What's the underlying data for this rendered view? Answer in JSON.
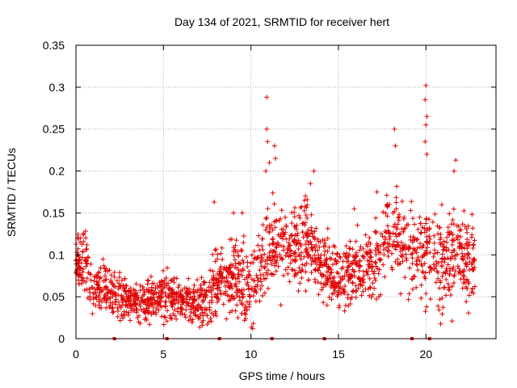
{
  "chart_data": {
    "type": "scatter",
    "title": "Day 134 of 2021, SRMTID for receiver hert",
    "xlabel": "GPS time / hours",
    "ylabel": "SRMTID / TECUs",
    "xlim": [
      0,
      24
    ],
    "ylim": [
      0,
      0.35
    ],
    "x_ticks": [
      0,
      5,
      10,
      15,
      20
    ],
    "y_ticks": [
      0,
      0.05,
      0.1,
      0.15,
      0.2,
      0.25,
      0.3,
      0.35
    ],
    "x_tick_labels": [
      "0",
      "5",
      "10",
      "15",
      "20"
    ],
    "y_tick_labels": [
      "0",
      "0.05",
      "0.1",
      "0.15",
      "0.2",
      "0.25",
      "0.3",
      "0.35"
    ],
    "grid": true,
    "marker": "+",
    "color": "#e00000",
    "baseline_markers_hours": [
      2.2,
      5.2,
      8.2,
      11.2,
      14.2,
      19.2,
      20.2
    ],
    "series": [
      {
        "name": "SRMTID",
        "profile_hours": [
          0,
          0.5,
          1,
          2,
          3,
          4,
          5,
          6,
          7,
          8,
          9,
          10,
          11,
          12,
          13,
          14,
          15,
          16,
          17,
          18,
          19,
          20,
          21,
          22,
          22.8
        ],
        "profile_median": [
          0.085,
          0.095,
          0.06,
          0.055,
          0.045,
          0.045,
          0.05,
          0.045,
          0.04,
          0.065,
          0.075,
          0.06,
          0.105,
          0.11,
          0.12,
          0.09,
          0.065,
          0.085,
          0.09,
          0.13,
          0.1,
          0.11,
          0.09,
          0.105,
          0.09
        ],
        "profile_spread": [
          0.02,
          0.025,
          0.02,
          0.02,
          0.015,
          0.015,
          0.018,
          0.015,
          0.017,
          0.03,
          0.03,
          0.03,
          0.035,
          0.03,
          0.035,
          0.025,
          0.025,
          0.025,
          0.03,
          0.03,
          0.035,
          0.04,
          0.035,
          0.035,
          0.03
        ],
        "outliers": [
          {
            "x": 10.9,
            "y": 0.288
          },
          {
            "x": 10.9,
            "y": 0.25
          },
          {
            "x": 10.95,
            "y": 0.235
          },
          {
            "x": 11.05,
            "y": 0.21
          },
          {
            "x": 10.85,
            "y": 0.2
          },
          {
            "x": 11.35,
            "y": 0.23
          },
          {
            "x": 11.4,
            "y": 0.215
          },
          {
            "x": 13.6,
            "y": 0.2
          },
          {
            "x": 13.4,
            "y": 0.185
          },
          {
            "x": 18.2,
            "y": 0.25
          },
          {
            "x": 18.25,
            "y": 0.23
          },
          {
            "x": 20.0,
            "y": 0.302
          },
          {
            "x": 19.95,
            "y": 0.285
          },
          {
            "x": 20.05,
            "y": 0.265
          },
          {
            "x": 20.0,
            "y": 0.255
          },
          {
            "x": 19.95,
            "y": 0.235
          },
          {
            "x": 20.05,
            "y": 0.22
          },
          {
            "x": 21.7,
            "y": 0.213
          },
          {
            "x": 21.6,
            "y": 0.2
          },
          {
            "x": 9.0,
            "y": 0.15
          },
          {
            "x": 7.9,
            "y": 0.163
          },
          {
            "x": 9.5,
            "y": 0.15
          },
          {
            "x": 17.2,
            "y": 0.175
          },
          {
            "x": 15.9,
            "y": 0.155
          }
        ]
      }
    ]
  }
}
